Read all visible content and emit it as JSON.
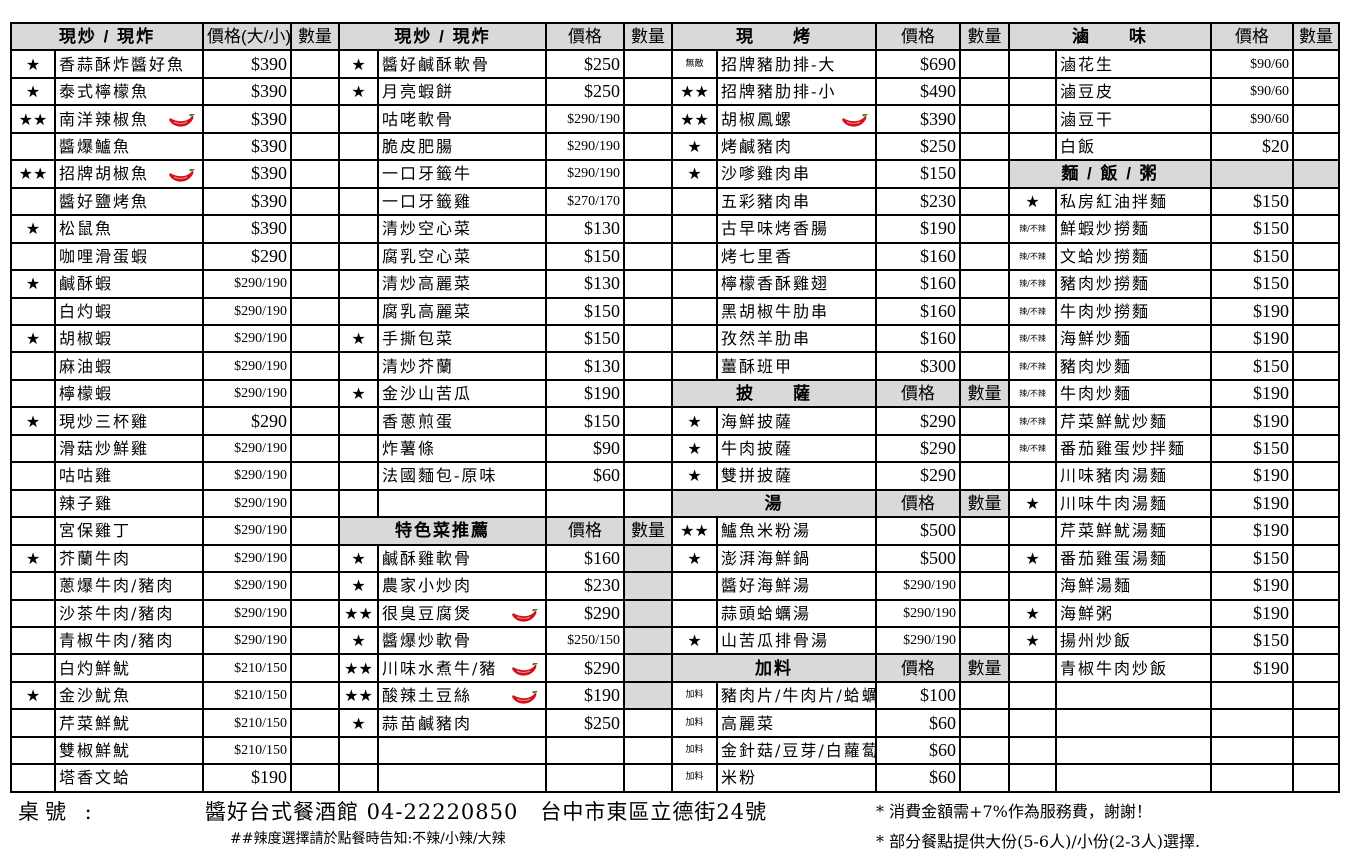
{
  "blocks": [
    {
      "rows": [
        {
          "type": "header",
          "title": "現炒 / 現炸",
          "price": "價格(大/小)",
          "qty": "數量"
        },
        {
          "mark": "★",
          "name": "香蒜酥炸醬好魚",
          "price": "$390"
        },
        {
          "mark": "★",
          "name": "泰式檸檬魚",
          "price": "$390"
        },
        {
          "mark": "★★",
          "name": "南洋辣椒魚",
          "price": "$390",
          "chili": true
        },
        {
          "mark": "",
          "name": "醬爆鱸魚",
          "price": "$390"
        },
        {
          "mark": "★★",
          "name": "招牌胡椒魚",
          "price": "$390",
          "chili": true
        },
        {
          "mark": "",
          "name": "醬好鹽烤魚",
          "price": "$390"
        },
        {
          "mark": "★",
          "name": "松鼠魚",
          "price": "$390"
        },
        {
          "mark": "",
          "name": "咖哩滑蛋蝦",
          "price": "$290"
        },
        {
          "mark": "★",
          "name": "鹹酥蝦",
          "price": "$290/190"
        },
        {
          "mark": "",
          "name": "白灼蝦",
          "price": "$290/190"
        },
        {
          "mark": "★",
          "name": "胡椒蝦",
          "price": "$290/190"
        },
        {
          "mark": "",
          "name": "麻油蝦",
          "price": "$290/190"
        },
        {
          "mark": "",
          "name": "檸檬蝦",
          "price": "$290/190"
        },
        {
          "mark": "★",
          "name": "現炒三杯雞",
          "price": "$290"
        },
        {
          "mark": "",
          "name": "滑菇炒鮮雞",
          "price": "$290/190"
        },
        {
          "mark": "",
          "name": "咕咕雞",
          "price": "$290/190"
        },
        {
          "mark": "",
          "name": "辣子雞",
          "price": "$290/190"
        },
        {
          "mark": "",
          "name": "宮保雞丁",
          "price": "$290/190"
        },
        {
          "mark": "★",
          "name": "芥蘭牛肉",
          "price": "$290/190"
        },
        {
          "mark": "",
          "name": "蔥爆牛肉/豬肉",
          "price": "$290/190"
        },
        {
          "mark": "",
          "name": "沙茶牛肉/豬肉",
          "price": "$290/190"
        },
        {
          "mark": "",
          "name": "青椒牛肉/豬肉",
          "price": "$290/190"
        },
        {
          "mark": "",
          "name": "白灼鮮魷",
          "price": "$210/150"
        },
        {
          "mark": "★",
          "name": "金沙魷魚",
          "price": "$210/150"
        },
        {
          "mark": "",
          "name": "芹菜鮮魷",
          "price": "$210/150"
        },
        {
          "mark": "",
          "name": "雙椒鮮魷",
          "price": "$210/150"
        },
        {
          "mark": "",
          "name": "塔香文蛤",
          "price": "$190"
        }
      ]
    },
    {
      "rows": [
        {
          "type": "header",
          "title": "現炒 / 現炸",
          "price": "價格",
          "qty": "數量"
        },
        {
          "mark": "★",
          "name": "醬好鹹酥軟骨",
          "price": "$250"
        },
        {
          "mark": "★",
          "name": "月亮蝦餅",
          "price": "$250"
        },
        {
          "mark": "",
          "name": "咕咾軟骨",
          "price": "$290/190"
        },
        {
          "mark": "",
          "name": "脆皮肥腸",
          "price": "$290/190"
        },
        {
          "mark": "",
          "name": "一口牙籤牛",
          "price": "$290/190"
        },
        {
          "mark": "",
          "name": "一口牙籤雞",
          "price": "$270/170"
        },
        {
          "mark": "",
          "name": "清炒空心菜",
          "price": "$130"
        },
        {
          "mark": "",
          "name": "腐乳空心菜",
          "price": "$150"
        },
        {
          "mark": "",
          "name": "清炒高麗菜",
          "price": "$130"
        },
        {
          "mark": "",
          "name": "腐乳高麗菜",
          "price": "$150"
        },
        {
          "mark": "★",
          "name": "手撕包菜",
          "price": "$150"
        },
        {
          "mark": "",
          "name": "清炒芥蘭",
          "price": "$130"
        },
        {
          "mark": "★",
          "name": "金沙山苦瓜",
          "price": "$190"
        },
        {
          "mark": "",
          "name": "香蔥煎蛋",
          "price": "$150"
        },
        {
          "mark": "",
          "name": "炸薯條",
          "price": "$90"
        },
        {
          "mark": "",
          "name": "法國麵包-原味",
          "price": "$60"
        },
        {},
        {
          "type": "header",
          "title": "特色菜推薦",
          "price": "價格",
          "qty": "數量"
        },
        {
          "mark": "★",
          "name": "鹹酥雞軟骨",
          "price": "$160",
          "shaded": true
        },
        {
          "mark": "★",
          "name": "農家小炒肉",
          "price": "$230",
          "shaded": true
        },
        {
          "mark": "★★",
          "name": "很臭豆腐煲",
          "price": "$290",
          "chili": true,
          "shaded": true
        },
        {
          "mark": "★",
          "name": "醬爆炒軟骨",
          "price": "$250/150",
          "shaded": true
        },
        {
          "mark": "★★",
          "name": "川味水煮牛/豬",
          "price": "$290",
          "chili": true,
          "shaded": true
        },
        {
          "mark": "★★",
          "name": "酸辣土豆絲",
          "price": "$190",
          "chili": true,
          "shaded": true
        },
        {
          "mark": "★",
          "name": "蒜苗鹹豬肉",
          "price": "$250"
        },
        {},
        {}
      ]
    },
    {
      "rows": [
        {
          "type": "header",
          "title": "現　　烤",
          "price": "價格",
          "qty": "數量"
        },
        {
          "mark": "無敵",
          "name": "招牌豬肋排-大",
          "price": "$690"
        },
        {
          "mark": "★★",
          "name": "招牌豬肋排-小",
          "price": "$490"
        },
        {
          "mark": "★★",
          "name": "胡椒鳳螺",
          "price": "$390",
          "chili": true
        },
        {
          "mark": "★",
          "name": "烤鹹豬肉",
          "price": "$250"
        },
        {
          "mark": "★",
          "name": "沙嗲雞肉串",
          "price": "$150"
        },
        {
          "mark": "",
          "name": "五彩豬肉串",
          "price": "$230"
        },
        {
          "mark": "",
          "name": "古早味烤香腸",
          "price": "$190"
        },
        {
          "mark": "",
          "name": "烤七里香",
          "price": "$160"
        },
        {
          "mark": "",
          "name": "檸檬香酥雞翅",
          "price": "$160"
        },
        {
          "mark": "",
          "name": "黑胡椒牛肋串",
          "price": "$160"
        },
        {
          "mark": "",
          "name": "孜然羊肋串",
          "price": "$160"
        },
        {
          "mark": "",
          "name": "薑酥班甲",
          "price": "$300"
        },
        {
          "type": "header",
          "title": "披　　薩",
          "price": "價格",
          "qty": "數量"
        },
        {
          "mark": "★",
          "name": "海鮮披薩",
          "price": "$290"
        },
        {
          "mark": "★",
          "name": "牛肉披薩",
          "price": "$290"
        },
        {
          "mark": "★",
          "name": "雙拼披薩",
          "price": "$290"
        },
        {
          "type": "header",
          "title": "湯",
          "price": "價格",
          "qty": "數量"
        },
        {
          "mark": "★★",
          "name": "鱸魚米粉湯",
          "price": "$500"
        },
        {
          "mark": "★",
          "name": "澎湃海鮮鍋",
          "price": "$500"
        },
        {
          "mark": "",
          "name": "醬好海鮮湯",
          "price": "$290/190"
        },
        {
          "mark": "",
          "name": "蒜頭蛤蠣湯",
          "price": "$290/190"
        },
        {
          "mark": "★",
          "name": "山苦瓜排骨湯",
          "price": "$290/190"
        },
        {
          "type": "header",
          "title": "加料",
          "price": "價格",
          "qty": "數量"
        },
        {
          "mark": "加料",
          "name": "豬肉片/牛肉片/蛤蠣",
          "price": "$100"
        },
        {
          "mark": "加料",
          "name": "高麗菜",
          "price": "$60"
        },
        {
          "mark": "加料",
          "name": "金針菇/豆芽/白蘿蔔",
          "price": "$60"
        },
        {
          "mark": "加料",
          "name": "米粉",
          "price": "$60"
        }
      ]
    },
    {
      "rows": [
        {
          "type": "header",
          "title": "滷　　味",
          "price": "價格",
          "qty": "數量"
        },
        {
          "mark": "",
          "name": "滷花生",
          "price": "$90/60"
        },
        {
          "mark": "",
          "name": "滷豆皮",
          "price": "$90/60"
        },
        {
          "mark": "",
          "name": "滷豆干",
          "price": "$90/60"
        },
        {
          "mark": "",
          "name": "白飯",
          "price": "$20"
        },
        {
          "type": "header",
          "title": "麵 / 飯 / 粥",
          "price": "",
          "qty": ""
        },
        {
          "mark": "★",
          "name": "私房紅油拌麵",
          "price": "$150"
        },
        {
          "mark": "辣/不辣",
          "name": "鮮蝦炒撈麵",
          "price": "$150"
        },
        {
          "mark": "辣/不辣",
          "name": "文蛤炒撈麵",
          "price": "$150"
        },
        {
          "mark": "辣/不辣",
          "name": "豬肉炒撈麵",
          "price": "$150"
        },
        {
          "mark": "辣/不辣",
          "name": "牛肉炒撈麵",
          "price": "$190"
        },
        {
          "mark": "辣/不辣",
          "name": "海鮮炒麵",
          "price": "$190"
        },
        {
          "mark": "辣/不辣",
          "name": "豬肉炒麵",
          "price": "$150"
        },
        {
          "mark": "辣/不辣",
          "name": "牛肉炒麵",
          "price": "$190"
        },
        {
          "mark": "辣/不辣",
          "name": "芹菜鮮魷炒麵",
          "price": "$190"
        },
        {
          "mark": "辣/不辣",
          "name": "番茄雞蛋炒拌麵",
          "price": "$150"
        },
        {
          "mark": "",
          "name": "川味豬肉湯麵",
          "price": "$190"
        },
        {
          "mark": "★",
          "name": "川味牛肉湯麵",
          "price": "$190"
        },
        {
          "mark": "",
          "name": "芹菜鮮魷湯麵",
          "price": "$190"
        },
        {
          "mark": "★",
          "name": "番茄雞蛋湯麵",
          "price": "$150"
        },
        {
          "mark": "",
          "name": "海鮮湯麵",
          "price": "$190"
        },
        {
          "mark": "★",
          "name": "海鮮粥",
          "price": "$190"
        },
        {
          "mark": "★",
          "name": "揚州炒飯",
          "price": "$150"
        },
        {
          "mark": "",
          "name": "青椒牛肉炒飯",
          "price": "$190"
        },
        {},
        {},
        {},
        {}
      ]
    }
  ],
  "footer": {
    "table_no": "桌號 :",
    "restaurant": "醬好台式餐酒館 04-22220850　台中市東區立德街24號",
    "spicy_note": "##辣度選擇請於點餐時告知:不辣/小辣/大辣",
    "note1": "* 消費金額需+7%作為服務費，謝謝！",
    "note2": "* 部分餐點提供大份(5-6人)/小份(2-3人)選擇."
  },
  "colors": {
    "header_bg": "#d9d9d9",
    "chili": "#d0121b"
  },
  "icons": {
    "star": "star-icon",
    "chili": "chili-pepper-icon"
  }
}
